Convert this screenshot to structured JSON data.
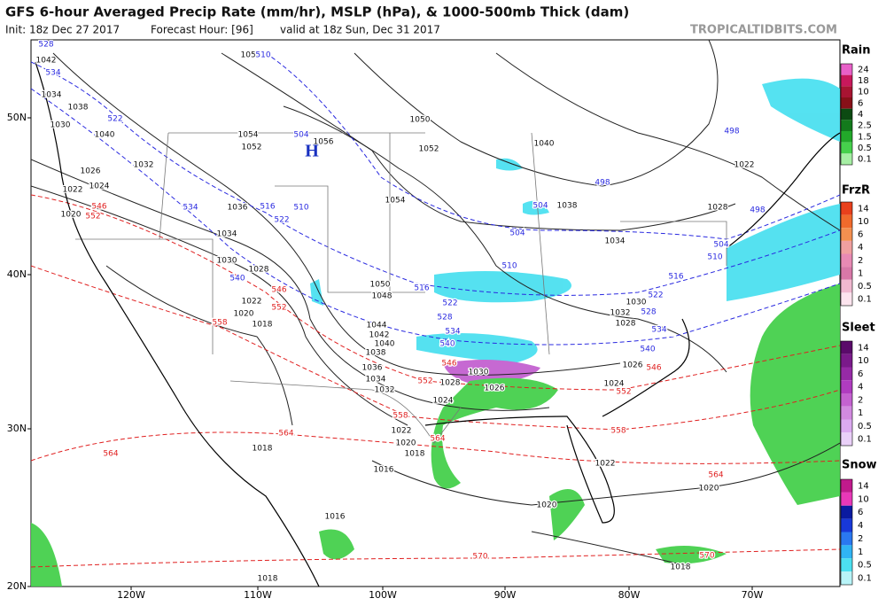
{
  "header": {
    "title": "GFS 6-hour Averaged Precip Rate (mm/hr), MSLP (hPa), & 1000-500mb Thick (dam)",
    "init": "Init: 18z Dec 27 2017",
    "forecast_hour": "Forecast Hour: [96]",
    "valid": "valid at 18z Sun, Dec 31 2017",
    "site": "TROPICALTIDBITS.COM"
  },
  "map": {
    "lat_labels": [
      "50N",
      "40N",
      "30N",
      "20N"
    ],
    "lon_labels": [
      "120W",
      "110W",
      "100W",
      "90W",
      "80W",
      "70W"
    ],
    "high_label": "H",
    "mslp_labels": [
      "1050",
      "1054",
      "1052",
      "1056",
      "1050",
      "1052",
      "1040",
      "1038",
      "1034",
      "1028",
      "1022",
      "1054",
      "1042",
      "1034",
      "1038",
      "1040",
      "1030",
      "1032",
      "1026",
      "1022",
      "1024",
      "1020",
      "1036",
      "1034",
      "1030",
      "1028",
      "1022",
      "1020",
      "1018",
      "1050",
      "1048",
      "1044",
      "1042",
      "1040",
      "1038",
      "1036",
      "1034",
      "1032",
      "1030",
      "1028",
      "1026",
      "1024",
      "1022",
      "1020",
      "1018",
      "1032",
      "1030",
      "1028",
      "1026",
      "1024",
      "1022",
      "1020",
      "1020",
      "1016",
      "1016",
      "1018",
      "1018",
      "1018"
    ],
    "thickness_labels": [
      "528",
      "534",
      "522",
      "510",
      "504",
      "498",
      "504",
      "498",
      "498",
      "504",
      "510",
      "516",
      "522",
      "528",
      "534",
      "540",
      "516",
      "522",
      "510",
      "534",
      "540",
      "504",
      "510",
      "516",
      "522",
      "528",
      "534",
      "540",
      "546",
      "552",
      "546",
      "552",
      "558",
      "546",
      "552",
      "558",
      "564",
      "564",
      "564",
      "546",
      "552",
      "558",
      "564",
      "570",
      "570"
    ]
  },
  "legend": [
    {
      "title": "Rain",
      "labels": [
        "24",
        "18",
        "10",
        "6",
        "4",
        "2.5",
        "1.5",
        "0.5",
        "0.1"
      ],
      "colors": [
        "#e860c8",
        "#c8185c",
        "#a81432",
        "#881018",
        "#0c4a12",
        "#137a1c",
        "#22a82a",
        "#46d04c",
        "#a6eea4"
      ]
    },
    {
      "title": "FrzR",
      "labels": [
        "14",
        "10",
        "6",
        "4",
        "2",
        "1",
        "0.5",
        "0.1"
      ],
      "colors": [
        "#e8401c",
        "#f06a2c",
        "#f49050",
        "#f0a0a0",
        "#e88ab4",
        "#d878a8",
        "#f0b8d0",
        "#fce4ee"
      ]
    },
    {
      "title": "Sleet",
      "labels": [
        "14",
        "10",
        "6",
        "4",
        "2",
        "1",
        "0.5",
        "0.1"
      ],
      "colors": [
        "#5a0a6a",
        "#7a1a8a",
        "#962aa6",
        "#b03cc0",
        "#c462d0",
        "#d28ae0",
        "#dcaaf0",
        "#ead0f8"
      ]
    },
    {
      "title": "Snow",
      "labels": [
        "14",
        "10",
        "6",
        "4",
        "2",
        "1",
        "0.5",
        "0.1"
      ],
      "colors": [
        "#c01a8c",
        "#e838b8",
        "#0a1aa0",
        "#1838d8",
        "#2a78f0",
        "#30b4f4",
        "#4ce0f0",
        "#b8f4f8"
      ]
    }
  ]
}
